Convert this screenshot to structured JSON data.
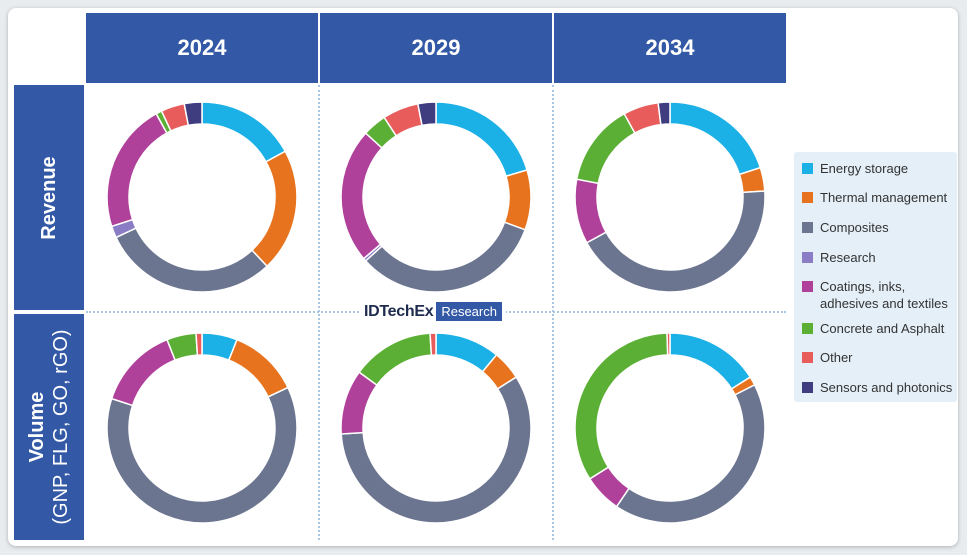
{
  "columns": [
    "2024",
    "2029",
    "2034"
  ],
  "rows": {
    "revenue": "Revenue",
    "volume_line1": "Volume",
    "volume_line2": "(GNP, FLG, GO, rGO)"
  },
  "watermark": {
    "brand": "IDTechEx",
    "tag": "Research"
  },
  "legend": [
    {
      "label": "Energy storage",
      "color": "#1bb0e6"
    },
    {
      "label": "Thermal management",
      "color": "#e8731f"
    },
    {
      "label": "Composites",
      "color": "#6b7590"
    },
    {
      "label": "Research",
      "color": "#8a7cc5"
    },
    {
      "label": "Coatings, inks, adhesives and textiles",
      "color": "#b0419a"
    },
    {
      "label": "Concrete and Asphalt",
      "color": "#5caf35"
    },
    {
      "label": "Other",
      "color": "#e85c5c"
    },
    {
      "label": "Sensors and photonics",
      "color": "#403c80"
    }
  ],
  "chart_data": [
    {
      "type": "pie",
      "row": "Revenue",
      "column": "2024",
      "categories": [
        "Energy storage",
        "Thermal management",
        "Composites",
        "Research",
        "Coatings, inks, adhesives and textiles",
        "Concrete and Asphalt",
        "Other",
        "Sensors and photonics"
      ],
      "values": [
        17,
        21,
        30,
        2,
        22,
        1,
        4,
        3
      ]
    },
    {
      "type": "pie",
      "row": "Revenue",
      "column": "2029",
      "categories": [
        "Energy storage",
        "Thermal management",
        "Composites",
        "Research",
        "Coatings, inks, adhesives and textiles",
        "Concrete and Asphalt",
        "Other",
        "Sensors and photonics"
      ],
      "values": [
        20,
        10,
        32,
        0.5,
        22.5,
        4,
        6,
        3
      ]
    },
    {
      "type": "pie",
      "row": "Revenue",
      "column": "2034",
      "categories": [
        "Energy storage",
        "Thermal management",
        "Composites",
        "Research",
        "Coatings, inks, adhesives and textiles",
        "Concrete and Asphalt",
        "Other",
        "Sensors and photonics"
      ],
      "values": [
        20,
        4,
        43,
        0,
        11,
        14,
        6,
        2
      ]
    },
    {
      "type": "pie",
      "row": "Volume (GNP, FLG, GO, rGO)",
      "column": "2024",
      "categories": [
        "Energy storage",
        "Thermal management",
        "Composites",
        "Research",
        "Coatings, inks, adhesives and textiles",
        "Concrete and Asphalt",
        "Other",
        "Sensors and photonics"
      ],
      "values": [
        6,
        12,
        62,
        0,
        14,
        5,
        1,
        0
      ]
    },
    {
      "type": "pie",
      "row": "Volume (GNP, FLG, GO, rGO)",
      "column": "2029",
      "categories": [
        "Energy storage",
        "Thermal management",
        "Composites",
        "Research",
        "Coatings, inks, adhesives and textiles",
        "Concrete and Asphalt",
        "Other",
        "Sensors and photonics"
      ],
      "values": [
        11,
        5,
        58,
        0,
        11,
        14,
        1,
        0
      ]
    },
    {
      "type": "pie",
      "row": "Volume (GNP, FLG, GO, rGO)",
      "column": "2034",
      "categories": [
        "Energy storage",
        "Thermal management",
        "Composites",
        "Research",
        "Coatings, inks, adhesives and textiles",
        "Concrete and Asphalt",
        "Other",
        "Sensors and photonics"
      ],
      "values": [
        16,
        1.5,
        42,
        0,
        6.5,
        33.5,
        0.5,
        0
      ]
    }
  ]
}
